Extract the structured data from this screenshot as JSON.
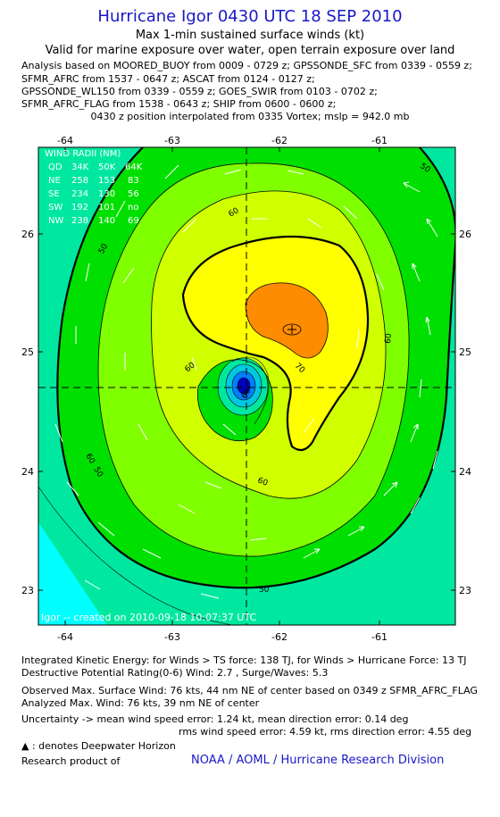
{
  "header": {
    "title": "Hurricane Igor 0430 UTC 18 SEP 2010",
    "subtitle": "Max 1-min sustained surface winds (kt)",
    "validity": "Valid for marine exposure over water, open terrain exposure over land",
    "analysis_lines": [
      "Analysis based on MOORED_BUOY from 0009 - 0729 z; GPSSONDE_SFC from 0339 - 0559 z;",
      "SFMR_AFRC from 1537 - 0647 z; ASCAT from 0124 - 0127 z;",
      "GPSSONDE_WL150 from 0339 - 0559 z; GOES_SWIR from 0103 - 0702 z;",
      "SFMR_AFRC_FLAG from 1538 - 0643 z; SHIP from 0600 - 0600 z;"
    ],
    "position_note": "0430 z position interpolated from 0335 Vortex; mslp = 942.0 mb"
  },
  "map": {
    "lon_ticks": [
      "-64",
      "-63",
      "-62",
      "-61"
    ],
    "lat_ticks": [
      "26",
      "25",
      "24",
      "23"
    ],
    "wind_radii": {
      "title": "WIND RADII (NM)",
      "header": [
        "QD",
        "34K",
        "50K",
        "64K"
      ],
      "rows": [
        [
          "NE",
          "258",
          "153",
          "83"
        ],
        [
          "SE",
          "234",
          "130",
          "56"
        ],
        [
          "SW",
          "192",
          "101",
          "no"
        ],
        [
          "NW",
          "238",
          "140",
          "69"
        ]
      ]
    },
    "contour_labels": [
      "50",
      "60",
      "70",
      "60",
      "50",
      "60",
      "50",
      "60",
      "50",
      "60",
      "60"
    ],
    "credit": "Igor -- created on 2010-09-18 10:07:37 UTC",
    "colors": {
      "cyan": "#00ffff",
      "aqua_green": "#00e8a0",
      "bright_green": "#00e000",
      "light_green": "#80ff00",
      "yellow_green": "#d0ff00",
      "yellow": "#ffff00",
      "orange": "#ff8c00",
      "eye": "#0000c0"
    }
  },
  "footer": {
    "ike_line": "Integrated Kinetic Energy:  for Winds > TS force: 138 TJ,  for Winds > Hurricane Force: 13 TJ",
    "dpr_line": "Destructive Potential Rating(0-6)   Wind: 2.7 , Surge/Waves: 5.3",
    "obs_line": "Observed Max. Surface Wind: 76 kts, 44 nm NE of center based on 0349 z SFMR_AFRC_FLAG",
    "analyzed_line": "Analyzed Max. Wind: 76 kts, 39 nm NE of center",
    "unc_line1": "Uncertainty -> mean wind speed error: 1.24 kt,   mean direction error: 0.14 deg",
    "unc_line2": "rms wind speed error: 4.59 kt,   rms direction error: 4.55 deg",
    "deepwater": ": denotes Deepwater Horizon",
    "research": "Research product of",
    "org": "NOAA / AOML / Hurricane Research Division"
  }
}
